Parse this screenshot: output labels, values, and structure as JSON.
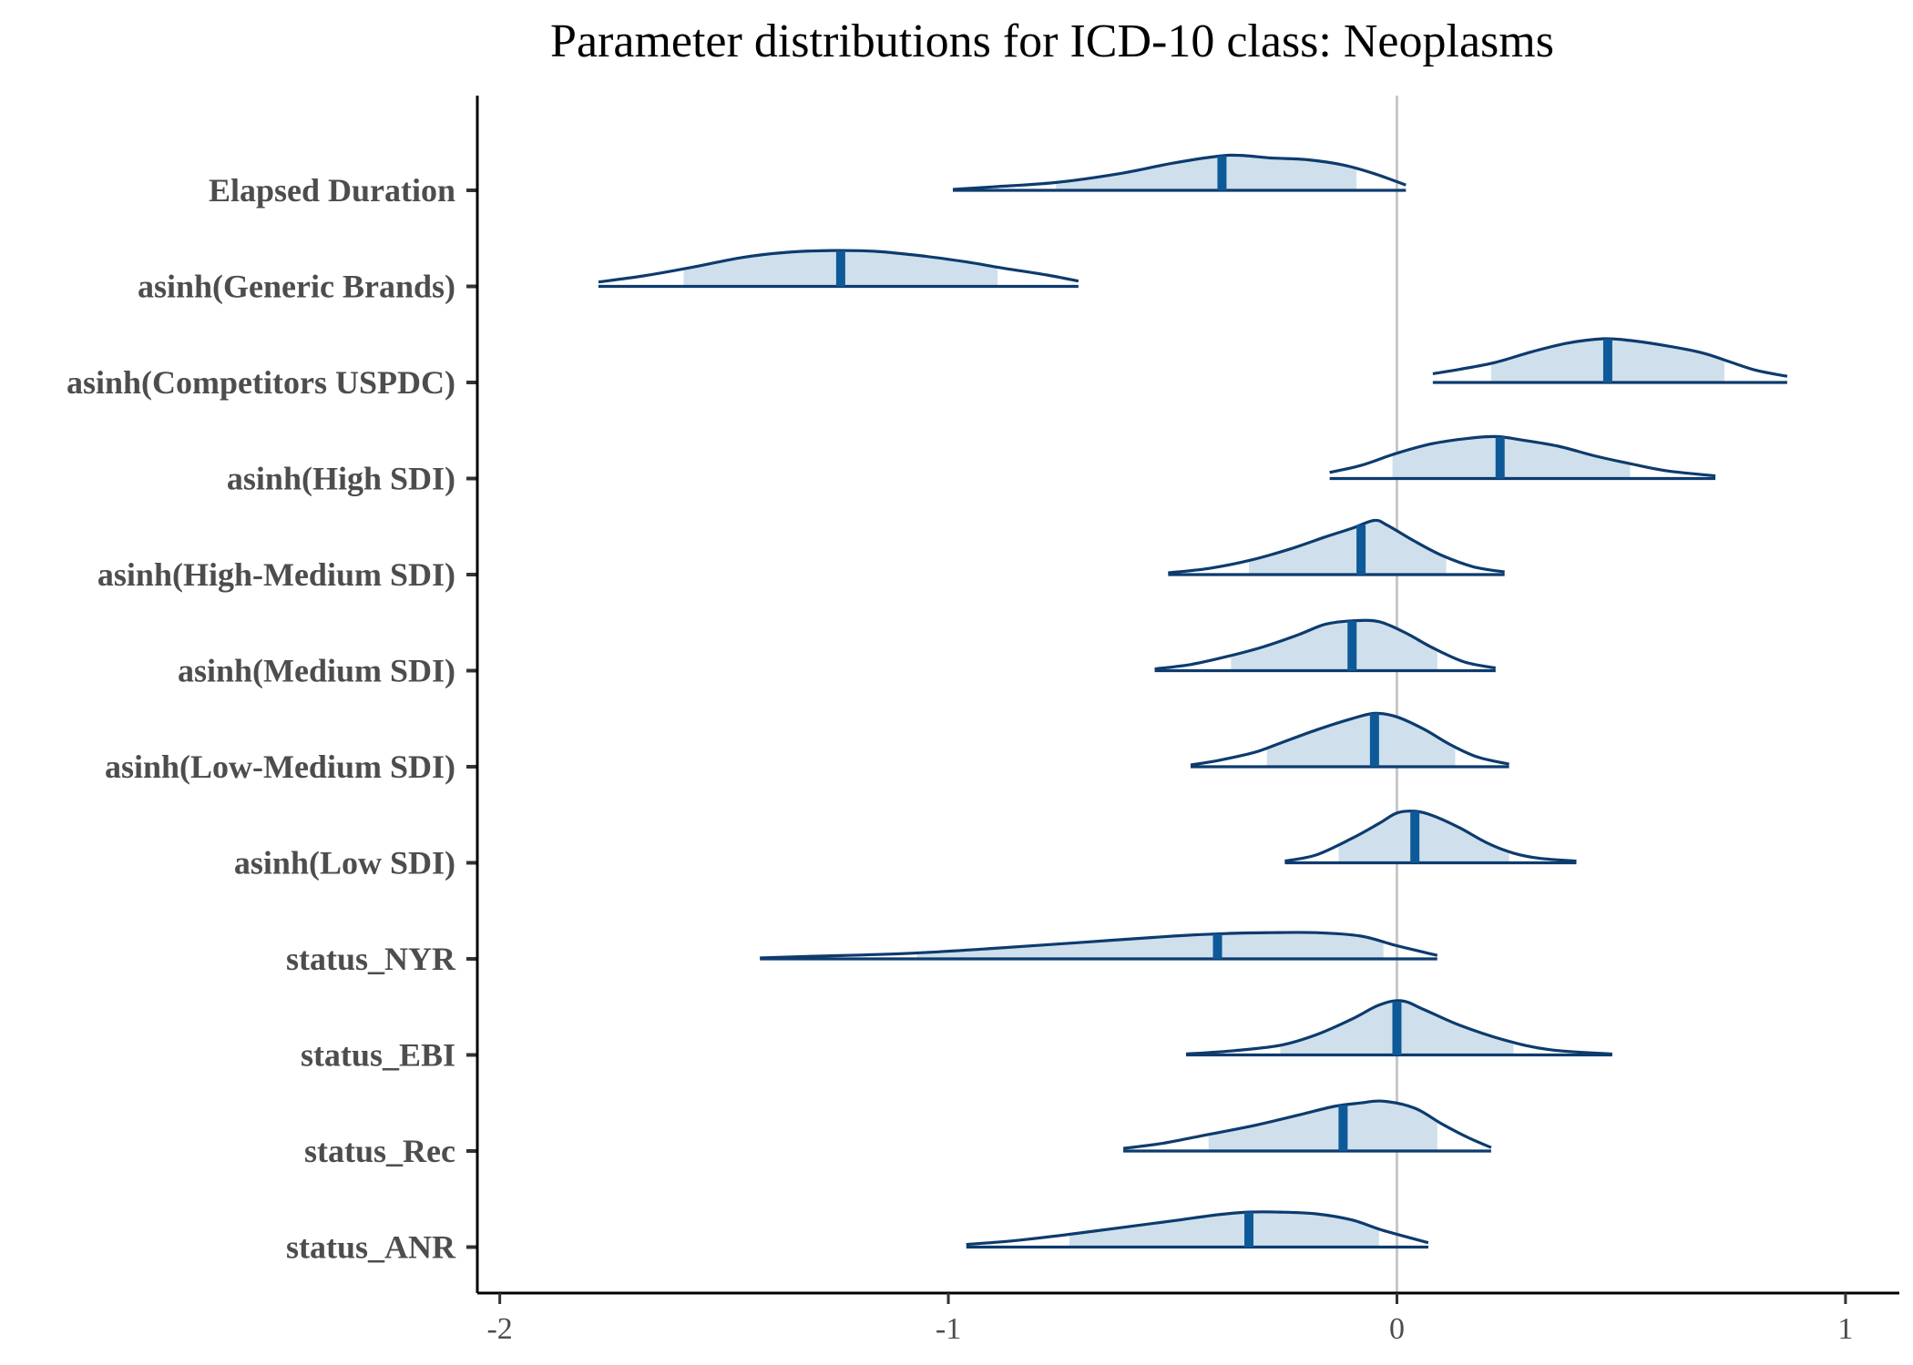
{
  "chart_data": {
    "type": "ridgeline",
    "title": "Parameter distributions for ICD-10 class: Neoplasms",
    "xlabel": "",
    "ylabel": "",
    "xlim": [
      -2.05,
      1.12
    ],
    "xticks": [
      "-2",
      "-1",
      "0",
      "1"
    ],
    "xtick_values": [
      -2,
      -1,
      0,
      1
    ],
    "reference_line": 0,
    "colors": {
      "outline": "#0d3b6e",
      "fill": "#cfe0ec",
      "median": "#0e5a99",
      "reference": "#c8c8c8",
      "axis": "#000000"
    },
    "series": [
      {
        "name": "Elapsed Duration",
        "median": -0.39,
        "ci_inner": [
          -0.76,
          -0.09
        ],
        "range": [
          -0.99,
          0.02
        ],
        "shape": [
          [
            -0.99,
            0.02
          ],
          [
            -0.9,
            0.08
          ],
          [
            -0.76,
            0.18
          ],
          [
            -0.62,
            0.38
          ],
          [
            -0.5,
            0.62
          ],
          [
            -0.4,
            0.78
          ],
          [
            -0.35,
            0.8
          ],
          [
            -0.28,
            0.74
          ],
          [
            -0.2,
            0.7
          ],
          [
            -0.12,
            0.58
          ],
          [
            -0.05,
            0.38
          ],
          [
            0.02,
            0.12
          ]
        ]
      },
      {
        "name": "asinh(Generic Brands)",
        "median": -1.24,
        "ci_inner": [
          -1.59,
          -0.89
        ],
        "range": [
          -1.78,
          -0.71
        ],
        "shape": [
          [
            -1.78,
            0.1
          ],
          [
            -1.68,
            0.24
          ],
          [
            -1.58,
            0.42
          ],
          [
            -1.46,
            0.66
          ],
          [
            -1.36,
            0.78
          ],
          [
            -1.26,
            0.82
          ],
          [
            -1.16,
            0.8
          ],
          [
            -1.06,
            0.7
          ],
          [
            -0.96,
            0.56
          ],
          [
            -0.88,
            0.42
          ],
          [
            -0.78,
            0.26
          ],
          [
            -0.71,
            0.12
          ]
        ]
      },
      {
        "name": "asinh(Competitors USPDC)",
        "median": 0.47,
        "ci_inner": [
          0.21,
          0.73
        ],
        "range": [
          0.08,
          0.87
        ],
        "shape": [
          [
            0.08,
            0.2
          ],
          [
            0.14,
            0.3
          ],
          [
            0.22,
            0.46
          ],
          [
            0.3,
            0.7
          ],
          [
            0.38,
            0.9
          ],
          [
            0.46,
            1.0
          ],
          [
            0.52,
            0.96
          ],
          [
            0.6,
            0.84
          ],
          [
            0.68,
            0.68
          ],
          [
            0.74,
            0.48
          ],
          [
            0.8,
            0.28
          ],
          [
            0.87,
            0.14
          ]
        ]
      },
      {
        "name": "asinh(High SDI)",
        "median": 0.23,
        "ci_inner": [
          -0.01,
          0.52
        ],
        "range": [
          -0.15,
          0.71
        ],
        "shape": [
          [
            -0.15,
            0.14
          ],
          [
            -0.08,
            0.3
          ],
          [
            0.0,
            0.58
          ],
          [
            0.08,
            0.8
          ],
          [
            0.16,
            0.92
          ],
          [
            0.22,
            0.96
          ],
          [
            0.28,
            0.88
          ],
          [
            0.36,
            0.74
          ],
          [
            0.44,
            0.52
          ],
          [
            0.52,
            0.34
          ],
          [
            0.6,
            0.18
          ],
          [
            0.71,
            0.06
          ]
        ]
      },
      {
        "name": "asinh(High-Medium SDI)",
        "median": -0.08,
        "ci_inner": [
          -0.33,
          0.11
        ],
        "range": [
          -0.51,
          0.24
        ],
        "shape": [
          [
            -0.51,
            0.04
          ],
          [
            -0.42,
            0.14
          ],
          [
            -0.33,
            0.32
          ],
          [
            -0.24,
            0.58
          ],
          [
            -0.16,
            0.86
          ],
          [
            -0.1,
            1.06
          ],
          [
            -0.05,
            1.24
          ],
          [
            -0.02,
            1.12
          ],
          [
            0.04,
            0.76
          ],
          [
            0.1,
            0.44
          ],
          [
            0.17,
            0.18
          ],
          [
            0.24,
            0.06
          ]
        ]
      },
      {
        "name": "asinh(Medium SDI)",
        "median": -0.1,
        "ci_inner": [
          -0.37,
          0.09
        ],
        "range": [
          -0.54,
          0.22
        ],
        "shape": [
          [
            -0.54,
            0.04
          ],
          [
            -0.46,
            0.14
          ],
          [
            -0.38,
            0.32
          ],
          [
            -0.3,
            0.54
          ],
          [
            -0.22,
            0.82
          ],
          [
            -0.16,
            1.06
          ],
          [
            -0.1,
            1.14
          ],
          [
            -0.04,
            1.12
          ],
          [
            0.02,
            0.86
          ],
          [
            0.08,
            0.52
          ],
          [
            0.15,
            0.2
          ],
          [
            0.22,
            0.06
          ]
        ]
      },
      {
        "name": "asinh(Low-Medium SDI)",
        "median": -0.05,
        "ci_inner": [
          -0.29,
          0.13
        ],
        "range": [
          -0.46,
          0.25
        ],
        "shape": [
          [
            -0.46,
            0.04
          ],
          [
            -0.4,
            0.14
          ],
          [
            -0.32,
            0.32
          ],
          [
            -0.26,
            0.54
          ],
          [
            -0.18,
            0.84
          ],
          [
            -0.1,
            1.1
          ],
          [
            -0.05,
            1.22
          ],
          [
            0.0,
            1.14
          ],
          [
            0.06,
            0.86
          ],
          [
            0.12,
            0.5
          ],
          [
            0.18,
            0.22
          ],
          [
            0.25,
            0.06
          ]
        ]
      },
      {
        "name": "asinh(Low SDI)",
        "median": 0.04,
        "ci_inner": [
          -0.13,
          0.25
        ],
        "range": [
          -0.25,
          0.4
        ],
        "shape": [
          [
            -0.25,
            0.04
          ],
          [
            -0.18,
            0.18
          ],
          [
            -0.1,
            0.56
          ],
          [
            -0.04,
            0.9
          ],
          [
            0.0,
            1.14
          ],
          [
            0.04,
            1.18
          ],
          [
            0.08,
            1.08
          ],
          [
            0.14,
            0.8
          ],
          [
            0.2,
            0.46
          ],
          [
            0.26,
            0.22
          ],
          [
            0.32,
            0.1
          ],
          [
            0.4,
            0.04
          ]
        ]
      },
      {
        "name": "status_NYR",
        "median": -0.4,
        "ci_inner": [
          -1.07,
          -0.03
        ],
        "range": [
          -1.42,
          0.09
        ],
        "shape": [
          [
            -1.42,
            0.02
          ],
          [
            -1.3,
            0.06
          ],
          [
            -1.1,
            0.12
          ],
          [
            -0.9,
            0.24
          ],
          [
            -0.7,
            0.38
          ],
          [
            -0.5,
            0.52
          ],
          [
            -0.38,
            0.58
          ],
          [
            -0.28,
            0.6
          ],
          [
            -0.18,
            0.6
          ],
          [
            -0.08,
            0.52
          ],
          [
            0.0,
            0.3
          ],
          [
            0.09,
            0.08
          ]
        ]
      },
      {
        "name": "status_EBI",
        "median": 0.0,
        "ci_inner": [
          -0.26,
          0.26
        ],
        "range": [
          -0.47,
          0.48
        ],
        "shape": [
          [
            -0.47,
            0.02
          ],
          [
            -0.36,
            0.1
          ],
          [
            -0.26,
            0.22
          ],
          [
            -0.18,
            0.46
          ],
          [
            -0.1,
            0.82
          ],
          [
            -0.04,
            1.14
          ],
          [
            0.01,
            1.24
          ],
          [
            0.06,
            1.04
          ],
          [
            0.14,
            0.68
          ],
          [
            0.24,
            0.34
          ],
          [
            0.34,
            0.12
          ],
          [
            0.48,
            0.02
          ]
        ]
      },
      {
        "name": "status_Rec",
        "median": -0.12,
        "ci_inner": [
          -0.42,
          0.09
        ],
        "range": [
          -0.61,
          0.21
        ],
        "shape": [
          [
            -0.61,
            0.06
          ],
          [
            -0.52,
            0.18
          ],
          [
            -0.42,
            0.38
          ],
          [
            -0.32,
            0.58
          ],
          [
            -0.22,
            0.82
          ],
          [
            -0.14,
            1.02
          ],
          [
            -0.08,
            1.1
          ],
          [
            -0.03,
            1.14
          ],
          [
            0.04,
            0.98
          ],
          [
            0.1,
            0.62
          ],
          [
            0.16,
            0.3
          ],
          [
            0.21,
            0.08
          ]
        ]
      },
      {
        "name": "status_ANR",
        "median": -0.33,
        "ci_inner": [
          -0.73,
          -0.04
        ],
        "range": [
          -0.96,
          0.07
        ],
        "shape": [
          [
            -0.96,
            0.06
          ],
          [
            -0.86,
            0.14
          ],
          [
            -0.74,
            0.28
          ],
          [
            -0.62,
            0.44
          ],
          [
            -0.5,
            0.6
          ],
          [
            -0.4,
            0.74
          ],
          [
            -0.33,
            0.8
          ],
          [
            -0.26,
            0.8
          ],
          [
            -0.18,
            0.76
          ],
          [
            -0.1,
            0.62
          ],
          [
            -0.03,
            0.38
          ],
          [
            0.07,
            0.1
          ]
        ]
      }
    ]
  }
}
